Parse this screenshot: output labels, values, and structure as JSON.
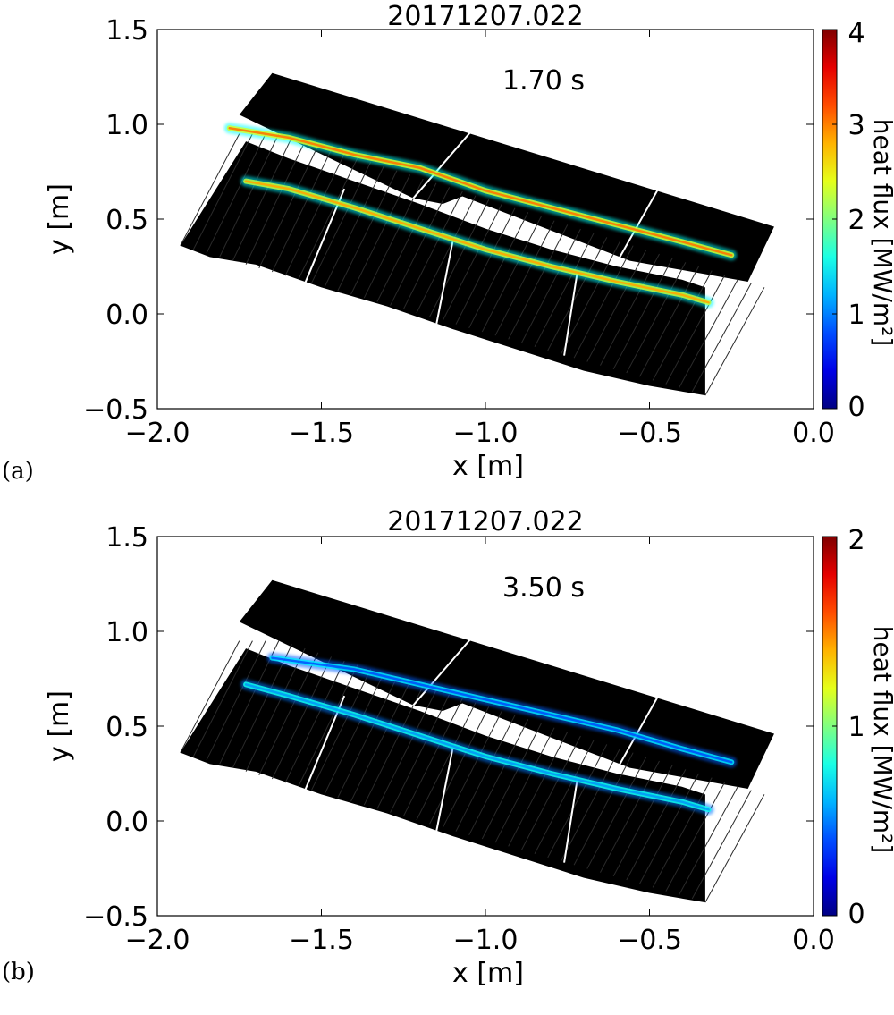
{
  "chart_data": [
    {
      "type": "heatmap",
      "panel_label": "(a)",
      "title": "20171207.022",
      "annotation": "1.70 s",
      "xlabel": "x [m]",
      "ylabel": "y [m]",
      "xlim": [
        -2.0,
        0.0
      ],
      "ylim": [
        -0.5,
        1.5
      ],
      "xticks": [
        -2.0,
        -1.5,
        -1.0,
        -0.5,
        0.0
      ],
      "xtick_labels": [
        "−2.0",
        "−1.5",
        "−1.0",
        "−0.5",
        "0.0"
      ],
      "yticks": [
        1.5,
        1.0,
        0.5,
        0.0,
        -0.5
      ],
      "ytick_labels": [
        "1.5",
        "1.0",
        "0.5",
        "0.0",
        "−0.5"
      ],
      "colorbar": {
        "label": "heat flux [MW/m²]",
        "range": [
          0,
          4
        ],
        "ticks": [
          0,
          1,
          2,
          3,
          4
        ],
        "tick_labels": [
          "0",
          "1",
          "2",
          "3",
          "4"
        ]
      },
      "stripes": [
        {
          "name": "upper-strike-line",
          "x": [
            -1.78,
            -1.6,
            -1.4,
            -1.2,
            -1.0,
            -0.8,
            -0.6,
            -0.4,
            -0.25
          ],
          "y": [
            0.98,
            0.93,
            0.84,
            0.77,
            0.65,
            0.56,
            0.47,
            0.38,
            0.31
          ],
          "peak": 3.2
        },
        {
          "name": "lower-strike-line",
          "x": [
            -1.73,
            -1.6,
            -1.4,
            -1.2,
            -1.0,
            -0.8,
            -0.6,
            -0.4,
            -0.32
          ],
          "y": [
            0.7,
            0.66,
            0.56,
            0.45,
            0.34,
            0.25,
            0.17,
            0.1,
            0.06
          ],
          "peak": 3.0
        }
      ]
    },
    {
      "type": "heatmap",
      "panel_label": "(b)",
      "title": "20171207.022",
      "annotation": "3.50 s",
      "xlabel": "x [m]",
      "ylabel": "y [m]",
      "xlim": [
        -2.0,
        0.0
      ],
      "ylim": [
        -0.5,
        1.5
      ],
      "xticks": [
        -2.0,
        -1.5,
        -1.0,
        -0.5,
        0.0
      ],
      "xtick_labels": [
        "−2.0",
        "−1.5",
        "−1.0",
        "−0.5",
        "0.0"
      ],
      "yticks": [
        1.5,
        1.0,
        0.5,
        0.0,
        -0.5
      ],
      "ytick_labels": [
        "1.5",
        "1.0",
        "0.5",
        "0.0",
        "−0.5"
      ],
      "colorbar": {
        "label": "heat flux [MW/m²]",
        "range": [
          0,
          2
        ],
        "ticks": [
          0,
          1,
          2
        ],
        "tick_labels": [
          "0",
          "1",
          "2"
        ]
      },
      "stripes": [
        {
          "name": "upper-strike-line",
          "x": [
            -1.65,
            -1.4,
            -1.2,
            -1.0,
            -0.8,
            -0.6,
            -0.4,
            -0.25
          ],
          "y": [
            0.86,
            0.8,
            0.72,
            0.64,
            0.56,
            0.48,
            0.38,
            0.31
          ],
          "peak": 0.3
        },
        {
          "name": "lower-strike-line",
          "x": [
            -1.73,
            -1.6,
            -1.4,
            -1.2,
            -1.0,
            -0.8,
            -0.6,
            -0.4,
            -0.32
          ],
          "y": [
            0.72,
            0.66,
            0.56,
            0.45,
            0.34,
            0.25,
            0.17,
            0.1,
            0.06
          ],
          "peak": 0.5
        }
      ]
    }
  ]
}
